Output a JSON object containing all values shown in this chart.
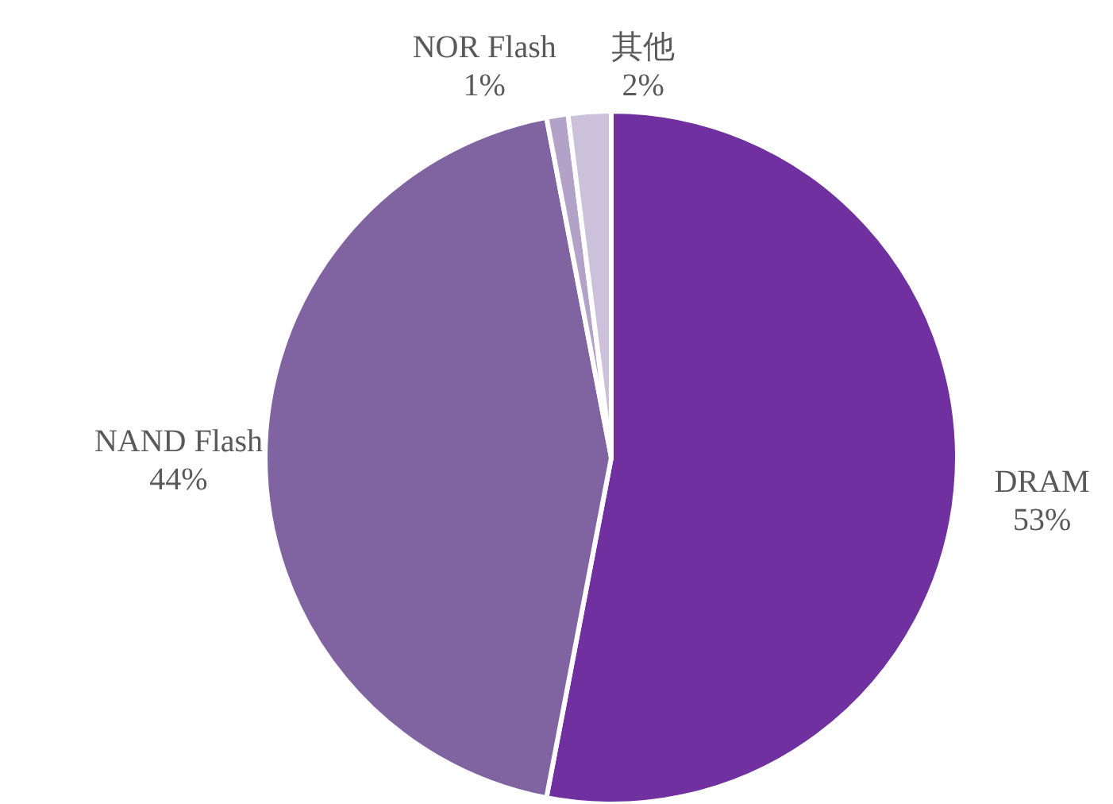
{
  "chart_data": {
    "type": "pie",
    "categories": [
      "DRAM",
      "NAND Flash",
      "NOR Flash",
      "其他"
    ],
    "values": [
      53,
      44,
      1,
      2
    ],
    "colors": [
      "#7030a0",
      "#8064a2",
      "#b3a2c7",
      "#ccc1da"
    ],
    "value_labels": [
      "53%",
      "44%",
      "1%",
      "2%"
    ],
    "legend": false
  }
}
